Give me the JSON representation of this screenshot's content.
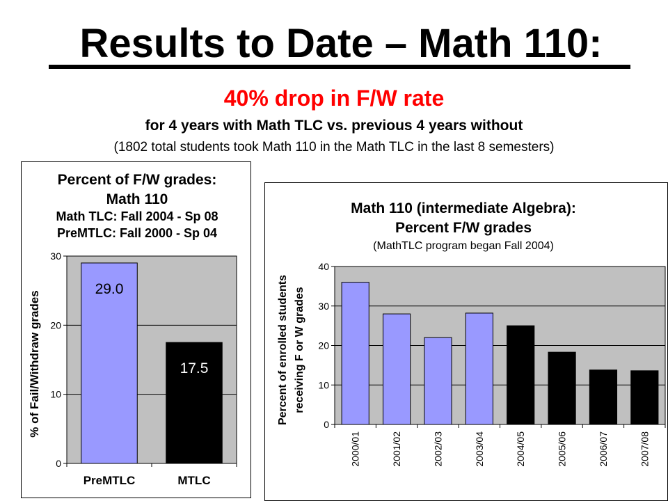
{
  "header": {
    "title": "Results to Date – Math 110:",
    "subtitle": "40% drop in F/W rate",
    "subline": "for 4 years with Math TLC vs. previous 4 years without",
    "note": "(1802 total students took Math 110 in the Math TLC in the last 8 semesters)"
  },
  "colors": {
    "periwinkle": "#9999ff",
    "black": "#000000",
    "plot_bg": "#c0c0c0",
    "red": "#ff0000"
  },
  "chart_data": [
    {
      "type": "bar",
      "title_lines": [
        "Percent of F/W grades:",
        "Math 110",
        "Math TLC: Fall 2004 - Sp 08",
        "PreMTLC: Fall 2000 - Sp 04"
      ],
      "xlabel": "",
      "ylabel": "% of Fail/Withdraw grades",
      "categories": [
        "PreMTLC",
        "MTLC"
      ],
      "values": [
        29.0,
        17.5
      ],
      "data_labels": [
        "29.0",
        "17.5"
      ],
      "bar_colors": [
        "#9999ff",
        "#000000"
      ],
      "label_colors": [
        "#000000",
        "#ffffff"
      ],
      "ylim": [
        0,
        30
      ],
      "yticks": [
        0,
        10,
        20,
        30
      ],
      "ytick_labels": [
        "0",
        "10",
        "20",
        "30"
      ],
      "grid": true,
      "legend": "none"
    },
    {
      "type": "bar",
      "title_lines": [
        "Math 110 (intermediate Algebra):",
        "Percent F/W grades",
        "(MathTLC program began Fall 2004)"
      ],
      "xlabel": "",
      "ylabel_lines": [
        "Percent of enrolled students",
        "receiving F or W grades"
      ],
      "categories": [
        "2000/01",
        "2001/02",
        "2002/03",
        "2003/04",
        "2004/05",
        "2005/06",
        "2006/07",
        "2007/08"
      ],
      "values": [
        36,
        28,
        22,
        28.2,
        25,
        18.3,
        13.8,
        13.6
      ],
      "bar_colors": [
        "#9999ff",
        "#9999ff",
        "#9999ff",
        "#9999ff",
        "#000000",
        "#000000",
        "#000000",
        "#000000"
      ],
      "ylim": [
        0,
        40
      ],
      "yticks": [
        0,
        10,
        20,
        30,
        40
      ],
      "ytick_labels": [
        "0",
        "10",
        "20",
        "30",
        "40"
      ],
      "grid": true,
      "legend": "none"
    }
  ]
}
